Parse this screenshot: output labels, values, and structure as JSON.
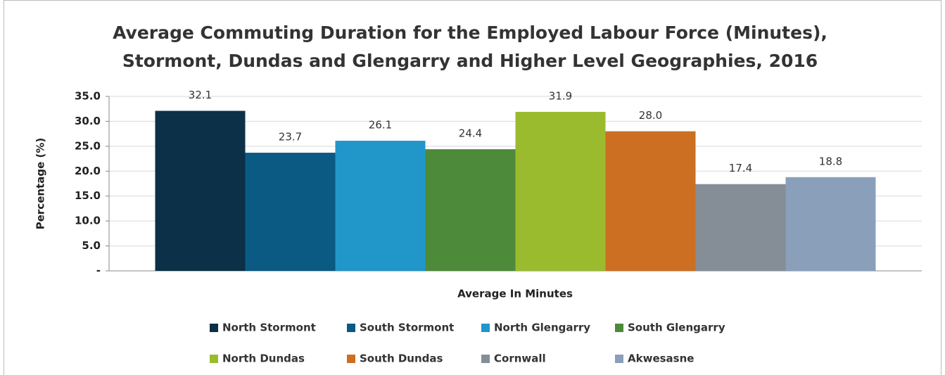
{
  "chart_data": {
    "type": "bar",
    "title": [
      "Average Commuting Duration for the Employed Labour Force (Minutes),",
      "Stormont, Dundas and Glengarry and Higher Level Geographies, 2016"
    ],
    "ylabel": "Percentage (%)",
    "xlabel": "Average In Minutes",
    "categories": [
      "Average In Minutes"
    ],
    "series": [
      {
        "name": "North Stormont",
        "color": "#0b3047",
        "values": [
          32.1
        ],
        "value_labels": [
          "32.1"
        ]
      },
      {
        "name": "South Stormont",
        "color": "#0a5a84",
        "values": [
          23.7
        ],
        "value_labels": [
          "23.7"
        ]
      },
      {
        "name": "North Glengarry",
        "color": "#2196c9",
        "values": [
          26.1
        ],
        "value_labels": [
          "26.1"
        ]
      },
      {
        "name": "South Glengarry",
        "color": "#4d8a3a",
        "values": [
          24.4
        ],
        "value_labels": [
          "24.4"
        ]
      },
      {
        "name": "North Dundas",
        "color": "#9bbb2e",
        "values": [
          31.9
        ],
        "value_labels": [
          "31.9"
        ]
      },
      {
        "name": "South Dundas",
        "color": "#cc6f22",
        "values": [
          28.0
        ],
        "value_labels": [
          "28.0"
        ]
      },
      {
        "name": "Cornwall",
        "color": "#858d96",
        "values": [
          17.4
        ],
        "value_labels": [
          "17.4"
        ]
      },
      {
        "name": "Akwesasne",
        "color": "#8a9fba",
        "values": [
          18.8
        ],
        "value_labels": [
          "18.8"
        ]
      }
    ],
    "ylim": [
      0,
      35
    ],
    "yticks": [
      {
        "value": 0,
        "label": "-"
      },
      {
        "value": 5,
        "label": "5.0"
      },
      {
        "value": 10,
        "label": "10.0"
      },
      {
        "value": 15,
        "label": "15.0"
      },
      {
        "value": 20,
        "label": "20.0"
      },
      {
        "value": 25,
        "label": "25.0"
      },
      {
        "value": 30,
        "label": "30.0"
      },
      {
        "value": 35,
        "label": "35.0"
      }
    ],
    "grid": true,
    "legend": "bottom"
  }
}
